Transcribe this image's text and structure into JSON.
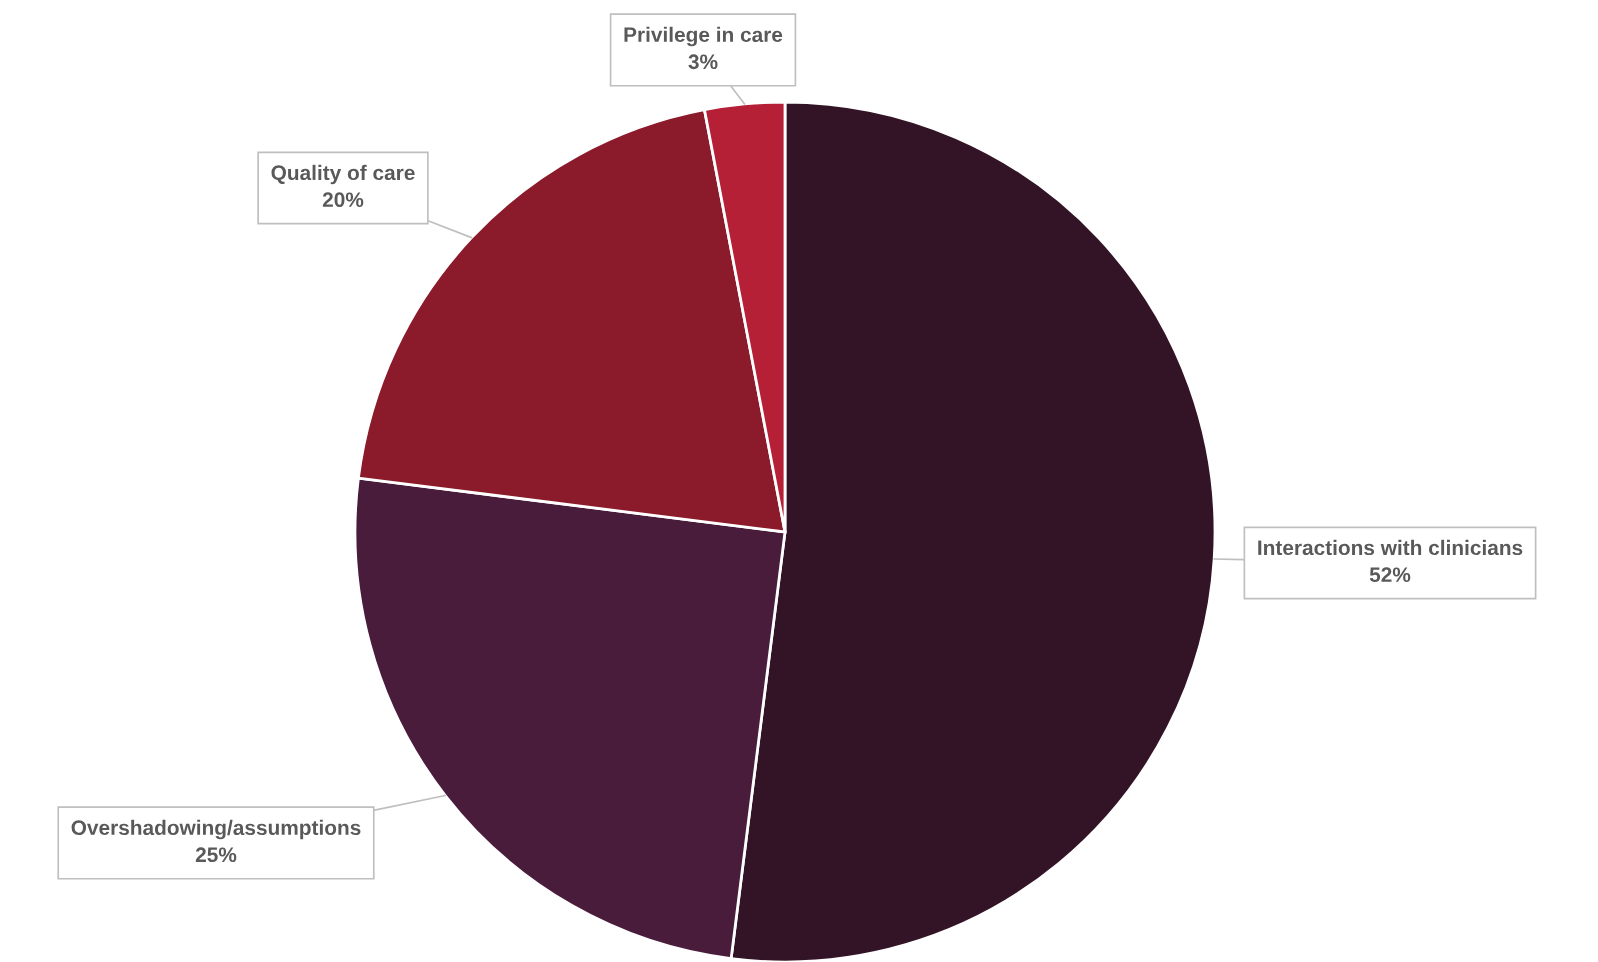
{
  "chart_data": {
    "type": "pie",
    "categories": [
      "Interactions with clinicians",
      "Overshadowing/assumptions",
      "Quality of care",
      "Privilege in care"
    ],
    "values": [
      52,
      25,
      20,
      3
    ],
    "colors": [
      "#331427",
      "#4a1c3c",
      "#8b1a2b",
      "#b52037"
    ],
    "value_labels": [
      "52%",
      "25%",
      "20%",
      "3%"
    ]
  }
}
